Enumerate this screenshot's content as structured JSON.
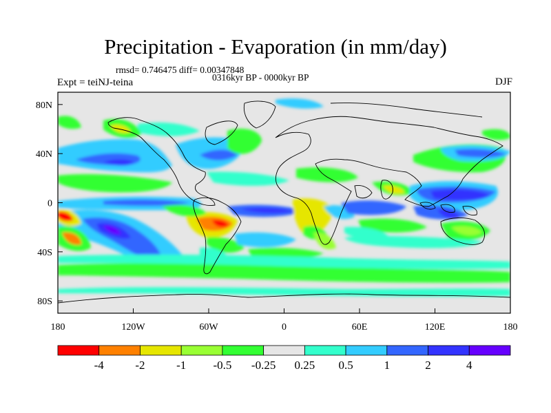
{
  "title": "Precipitation - Evaporation (in mm/day)",
  "stats_line": "rmsd= 0.746475 diff= 0.00347848",
  "period_line": "0316kyr BP - 0000kyr BP",
  "experiment_label": "Expt = teiNJ-teina",
  "season_label": "DJF",
  "map": {
    "projection": "cylindrical equidistant",
    "lon_range": [
      -180,
      180
    ],
    "lat_range": [
      -90,
      90
    ],
    "ocean_land_background": "#e6e6e6",
    "coastline_color": "#000000"
  },
  "x_ticks": [
    {
      "value": -180,
      "label": "180"
    },
    {
      "value": -120,
      "label": "120W"
    },
    {
      "value": -60,
      "label": "60W"
    },
    {
      "value": 0,
      "label": "0"
    },
    {
      "value": 60,
      "label": "60E"
    },
    {
      "value": 120,
      "label": "120E"
    },
    {
      "value": 180,
      "label": "180"
    }
  ],
  "y_ticks": [
    {
      "value": 80,
      "label": "80N"
    },
    {
      "value": 40,
      "label": "40N"
    },
    {
      "value": 0,
      "label": "0"
    },
    {
      "value": -40,
      "label": "40S"
    },
    {
      "value": -80,
      "label": "80S"
    }
  ],
  "colorbar": {
    "colors": [
      "#ff0000",
      "#ff8000",
      "#e6e600",
      "#99ff33",
      "#33ff33",
      "#e6e6e6",
      "#33ffcc",
      "#33ccff",
      "#3366ff",
      "#3333ff",
      "#6600ff"
    ],
    "levels": [
      "-4",
      "-2",
      "-1",
      "-0.5",
      "-0.25",
      "0.25",
      "0.5",
      "1",
      "2",
      "4"
    ]
  }
}
